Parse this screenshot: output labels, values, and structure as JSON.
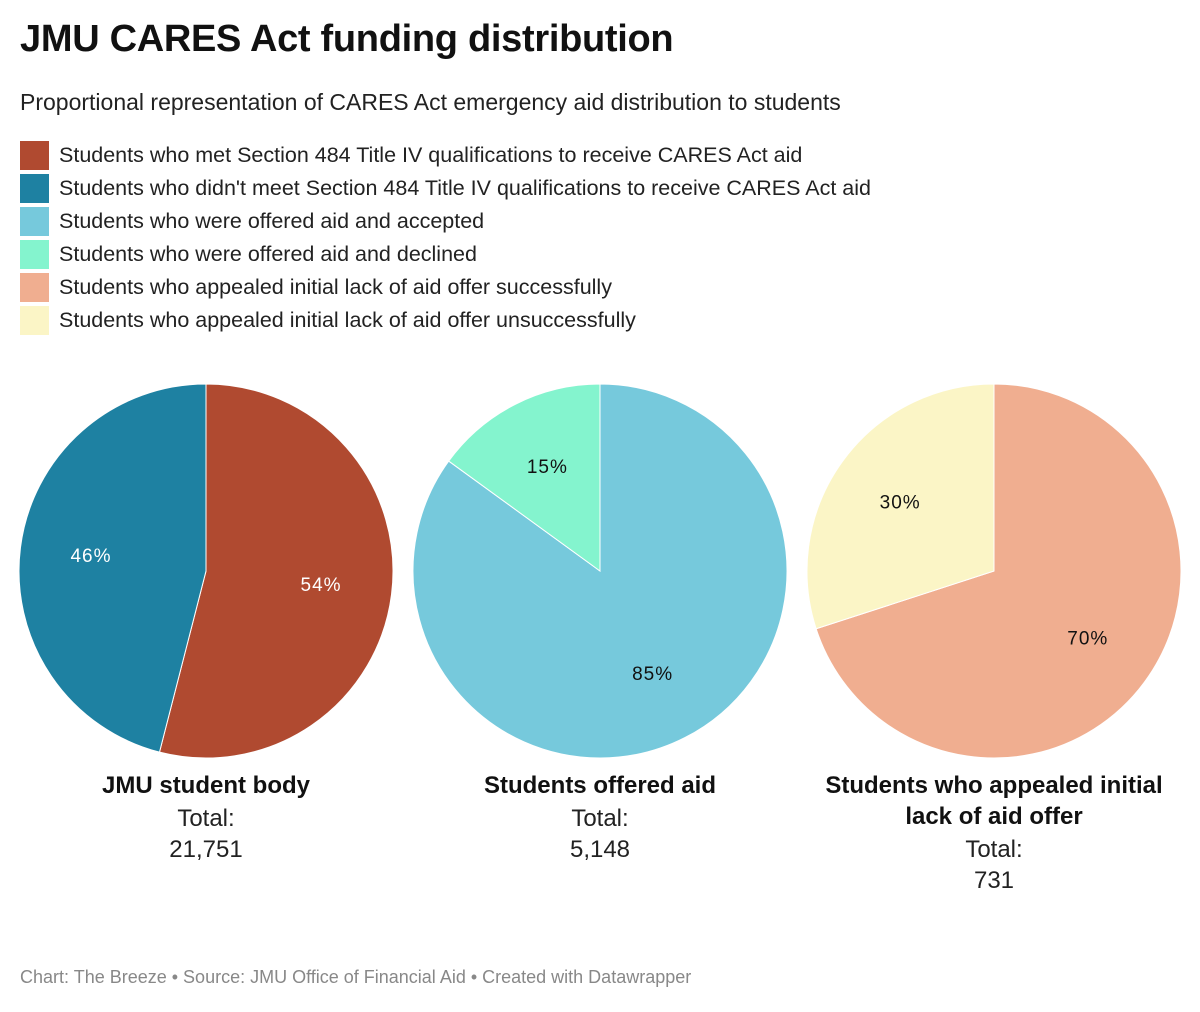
{
  "header": {
    "title": "JMU CARES Act funding distribution",
    "subtitle": "Proportional representation of CARES Act emergency aid distribution to students"
  },
  "legend": [
    {
      "label": "Students who met Section 484 Title IV qualifications to receive CARES Act aid",
      "color": "#b04a30"
    },
    {
      "label": "Students who didn't meet Section 484 Title IV qualifications to receive CARES Act aid",
      "color": "#1e81a2"
    },
    {
      "label": "Students who were offered aid and accepted",
      "color": "#76c9dc"
    },
    {
      "label": "Students who were offered aid and declined",
      "color": "#84f4ce"
    },
    {
      "label": "Students who appealed initial lack of aid offer successfully",
      "color": "#f0ae90"
    },
    {
      "label": "Students who appealed initial lack of aid offer unsuccessfully",
      "color": "#fbf5c6"
    }
  ],
  "chart_data": [
    {
      "type": "pie",
      "title": "JMU student body",
      "total_label": "Total:",
      "total_value": "21,751",
      "slices": [
        {
          "name": "Students who met Section 484 Title IV qualifications to receive CARES Act aid",
          "value": 54,
          "label": "54%",
          "color": "#b04a30",
          "text_color": "#ffffff"
        },
        {
          "name": "Students who didn't meet Section 484 Title IV qualifications to receive CARES Act aid",
          "value": 46,
          "label": "46%",
          "color": "#1e81a2",
          "text_color": "#ffffff"
        }
      ]
    },
    {
      "type": "pie",
      "title": "Students offered aid",
      "total_label": "Total:",
      "total_value": "5,148",
      "slices": [
        {
          "name": "Students who were offered aid and accepted",
          "value": 85,
          "label": "85%",
          "color": "#76c9dc",
          "text_color": "#111111"
        },
        {
          "name": "Students who were offered aid and declined",
          "value": 15,
          "label": "15%",
          "color": "#84f4ce",
          "text_color": "#111111"
        }
      ]
    },
    {
      "type": "pie",
      "title": "Students who appealed initial lack of aid offer",
      "total_label": "Total:",
      "total_value": "731",
      "slices": [
        {
          "name": "Students who appealed initial lack of aid offer successfully",
          "value": 70,
          "label": "70%",
          "color": "#f0ae90",
          "text_color": "#111111"
        },
        {
          "name": "Students who appealed initial lack of aid offer unsuccessfully",
          "value": 30,
          "label": "30%",
          "color": "#fbf5c6",
          "text_color": "#111111"
        }
      ]
    }
  ],
  "footer": {
    "credit": "Chart: The Breeze • Source: JMU Office of Financial Aid • Created with Datawrapper"
  }
}
